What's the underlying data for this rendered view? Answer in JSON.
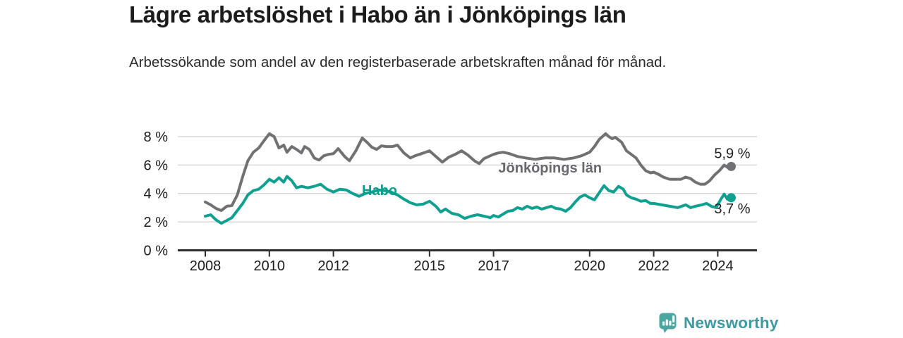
{
  "header": {
    "title": "Lägre arbetslöshet i Habo än i Jönköpings län",
    "subtitle": "Arbetssökande som andel av den registerbaserade arbetskraften månad för månad."
  },
  "chart_data": {
    "type": "line",
    "title": "Lägre arbetslöshet i Habo än i Jönköpings län",
    "xlabel": "",
    "ylabel": "",
    "grid": true,
    "x_axis": {
      "ticks": [
        2008,
        2010,
        2012,
        2015,
        2017,
        2020,
        2022,
        2024
      ],
      "range": [
        2007.9,
        2025.2
      ]
    },
    "y_axis": {
      "tick_labels": [
        "0 %",
        "2 %",
        "4 %",
        "6 %",
        "8 %"
      ],
      "tick_values": [
        0,
        2,
        4,
        6,
        8
      ],
      "range": [
        0,
        8.9
      ]
    },
    "style": {
      "grid_color": "#d9d9d9",
      "axis_color": "#2d2d2d",
      "tick_label_color": "#1b1b1b",
      "value_label_color": "#1f1f1f"
    },
    "series": [
      {
        "id": "jonkopings-lan",
        "name": "Jönköpings län",
        "color": "#717174",
        "label_color": "#68686d",
        "end_label": "5,9 %",
        "end_value": 5.9,
        "end_label_position": "above",
        "inline_label": {
          "year": 2017.15,
          "value": 5.47
        },
        "points": [
          [
            2008.0,
            3.4
          ],
          [
            2008.17,
            3.2
          ],
          [
            2008.33,
            2.95
          ],
          [
            2008.5,
            2.8
          ],
          [
            2008.67,
            3.1
          ],
          [
            2008.83,
            3.15
          ],
          [
            2009.0,
            3.9
          ],
          [
            2009.17,
            5.2
          ],
          [
            2009.33,
            6.3
          ],
          [
            2009.5,
            6.9
          ],
          [
            2009.67,
            7.2
          ],
          [
            2009.83,
            7.7
          ],
          [
            2010.0,
            8.2
          ],
          [
            2010.15,
            8.0
          ],
          [
            2010.3,
            7.2
          ],
          [
            2010.45,
            7.4
          ],
          [
            2010.55,
            6.9
          ],
          [
            2010.7,
            7.3
          ],
          [
            2010.85,
            7.1
          ],
          [
            2011.0,
            6.85
          ],
          [
            2011.1,
            7.3
          ],
          [
            2011.25,
            7.1
          ],
          [
            2011.4,
            6.5
          ],
          [
            2011.55,
            6.35
          ],
          [
            2011.7,
            6.65
          ],
          [
            2011.85,
            6.75
          ],
          [
            2012.0,
            6.8
          ],
          [
            2012.15,
            7.15
          ],
          [
            2012.35,
            6.6
          ],
          [
            2012.5,
            6.3
          ],
          [
            2012.7,
            7.0
          ],
          [
            2012.9,
            7.9
          ],
          [
            2013.05,
            7.6
          ],
          [
            2013.2,
            7.25
          ],
          [
            2013.35,
            7.1
          ],
          [
            2013.5,
            7.35
          ],
          [
            2013.65,
            7.3
          ],
          [
            2013.85,
            7.3
          ],
          [
            2014.0,
            7.4
          ],
          [
            2014.2,
            6.85
          ],
          [
            2014.4,
            6.5
          ],
          [
            2014.55,
            6.65
          ],
          [
            2014.75,
            6.8
          ],
          [
            2015.0,
            7.0
          ],
          [
            2015.2,
            6.6
          ],
          [
            2015.4,
            6.2
          ],
          [
            2015.6,
            6.55
          ],
          [
            2015.8,
            6.75
          ],
          [
            2016.0,
            7.0
          ],
          [
            2016.2,
            6.7
          ],
          [
            2016.4,
            6.3
          ],
          [
            2016.55,
            6.1
          ],
          [
            2016.7,
            6.45
          ],
          [
            2016.85,
            6.6
          ],
          [
            2017.0,
            6.75
          ],
          [
            2017.15,
            6.85
          ],
          [
            2017.3,
            6.9
          ],
          [
            2017.5,
            6.8
          ],
          [
            2017.75,
            6.6
          ],
          [
            2018.0,
            6.5
          ],
          [
            2018.3,
            6.4
          ],
          [
            2018.6,
            6.5
          ],
          [
            2018.9,
            6.5
          ],
          [
            2019.2,
            6.4
          ],
          [
            2019.5,
            6.5
          ],
          [
            2019.75,
            6.65
          ],
          [
            2020.0,
            6.9
          ],
          [
            2020.15,
            7.3
          ],
          [
            2020.3,
            7.8
          ],
          [
            2020.5,
            8.2
          ],
          [
            2020.6,
            8.0
          ],
          [
            2020.7,
            7.85
          ],
          [
            2020.8,
            7.95
          ],
          [
            2021.0,
            7.6
          ],
          [
            2021.15,
            7.0
          ],
          [
            2021.3,
            6.75
          ],
          [
            2021.45,
            6.5
          ],
          [
            2021.6,
            6.0
          ],
          [
            2021.75,
            5.6
          ],
          [
            2021.9,
            5.45
          ],
          [
            2022.0,
            5.5
          ],
          [
            2022.15,
            5.35
          ],
          [
            2022.3,
            5.15
          ],
          [
            2022.5,
            5.0
          ],
          [
            2022.7,
            5.0
          ],
          [
            2022.85,
            5.0
          ],
          [
            2023.0,
            5.15
          ],
          [
            2023.15,
            5.05
          ],
          [
            2023.3,
            4.8
          ],
          [
            2023.45,
            4.65
          ],
          [
            2023.6,
            4.65
          ],
          [
            2023.75,
            4.9
          ],
          [
            2023.9,
            5.3
          ],
          [
            2024.05,
            5.6
          ],
          [
            2024.2,
            6.0
          ],
          [
            2024.33,
            5.8
          ],
          [
            2024.42,
            5.9
          ]
        ]
      },
      {
        "id": "habo",
        "name": "Habo",
        "color": "#10a090",
        "label_color": "#0e9c8c",
        "end_label": "3,7 %",
        "end_value": 3.7,
        "end_label_position": "below",
        "inline_label": {
          "year": 2012.89,
          "value": 3.89
        },
        "points": [
          [
            2008.0,
            2.4
          ],
          [
            2008.17,
            2.5
          ],
          [
            2008.33,
            2.15
          ],
          [
            2008.5,
            1.9
          ],
          [
            2008.67,
            2.1
          ],
          [
            2008.83,
            2.3
          ],
          [
            2009.0,
            2.8
          ],
          [
            2009.17,
            3.3
          ],
          [
            2009.33,
            3.9
          ],
          [
            2009.5,
            4.2
          ],
          [
            2009.67,
            4.3
          ],
          [
            2009.83,
            4.6
          ],
          [
            2010.0,
            5.0
          ],
          [
            2010.15,
            4.8
          ],
          [
            2010.3,
            5.1
          ],
          [
            2010.45,
            4.8
          ],
          [
            2010.55,
            5.2
          ],
          [
            2010.7,
            4.9
          ],
          [
            2010.85,
            4.4
          ],
          [
            2011.0,
            4.5
          ],
          [
            2011.2,
            4.4
          ],
          [
            2011.4,
            4.5
          ],
          [
            2011.6,
            4.65
          ],
          [
            2011.8,
            4.3
          ],
          [
            2012.0,
            4.1
          ],
          [
            2012.2,
            4.3
          ],
          [
            2012.4,
            4.25
          ],
          [
            2012.6,
            4.0
          ],
          [
            2012.8,
            3.8
          ],
          [
            2013.0,
            4.0
          ],
          [
            2013.2,
            4.1
          ],
          [
            2013.4,
            4.25
          ],
          [
            2013.6,
            4.2
          ],
          [
            2013.8,
            4.1
          ],
          [
            2014.0,
            3.9
          ],
          [
            2014.2,
            3.6
          ],
          [
            2014.4,
            3.35
          ],
          [
            2014.6,
            3.2
          ],
          [
            2014.8,
            3.25
          ],
          [
            2015.0,
            3.45
          ],
          [
            2015.2,
            3.1
          ],
          [
            2015.35,
            2.7
          ],
          [
            2015.5,
            2.9
          ],
          [
            2015.7,
            2.6
          ],
          [
            2015.9,
            2.5
          ],
          [
            2016.1,
            2.25
          ],
          [
            2016.3,
            2.4
          ],
          [
            2016.5,
            2.5
          ],
          [
            2016.7,
            2.4
          ],
          [
            2016.9,
            2.3
          ],
          [
            2017.0,
            2.45
          ],
          [
            2017.15,
            2.35
          ],
          [
            2017.3,
            2.55
          ],
          [
            2017.45,
            2.75
          ],
          [
            2017.6,
            2.8
          ],
          [
            2017.75,
            3.0
          ],
          [
            2017.9,
            2.9
          ],
          [
            2018.05,
            3.1
          ],
          [
            2018.2,
            2.95
          ],
          [
            2018.35,
            3.05
          ],
          [
            2018.5,
            2.9
          ],
          [
            2018.65,
            3.0
          ],
          [
            2018.8,
            3.1
          ],
          [
            2018.95,
            2.95
          ],
          [
            2019.1,
            2.9
          ],
          [
            2019.25,
            2.75
          ],
          [
            2019.4,
            3.0
          ],
          [
            2019.55,
            3.4
          ],
          [
            2019.7,
            3.75
          ],
          [
            2019.85,
            3.9
          ],
          [
            2020.0,
            3.7
          ],
          [
            2020.15,
            3.55
          ],
          [
            2020.3,
            4.05
          ],
          [
            2020.45,
            4.55
          ],
          [
            2020.6,
            4.2
          ],
          [
            2020.75,
            4.1
          ],
          [
            2020.9,
            4.5
          ],
          [
            2021.05,
            4.3
          ],
          [
            2021.15,
            3.9
          ],
          [
            2021.3,
            3.7
          ],
          [
            2021.45,
            3.6
          ],
          [
            2021.6,
            3.45
          ],
          [
            2021.75,
            3.5
          ],
          [
            2021.9,
            3.3
          ],
          [
            2022.0,
            3.3
          ],
          [
            2022.25,
            3.2
          ],
          [
            2022.5,
            3.1
          ],
          [
            2022.75,
            3.0
          ],
          [
            2023.0,
            3.2
          ],
          [
            2023.15,
            3.0
          ],
          [
            2023.3,
            3.1
          ],
          [
            2023.5,
            3.2
          ],
          [
            2023.65,
            3.3
          ],
          [
            2023.8,
            3.1
          ],
          [
            2023.95,
            3.0
          ],
          [
            2024.1,
            3.6
          ],
          [
            2024.2,
            3.95
          ],
          [
            2024.3,
            3.6
          ],
          [
            2024.42,
            3.7
          ]
        ]
      }
    ]
  },
  "footer": {
    "brand": "Newsworthy",
    "brand_color": "#3e99a1",
    "logo_color": "#4ba6a1"
  }
}
